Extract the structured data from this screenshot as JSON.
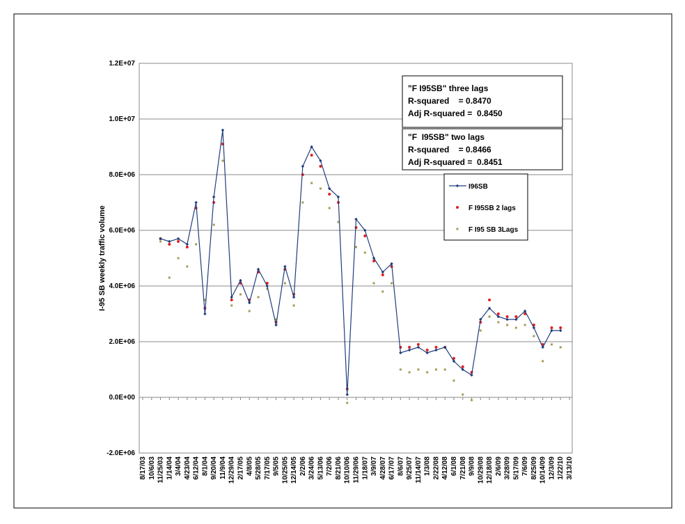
{
  "chart_data": {
    "type": "line",
    "y_axis_label": "I-95 SB weekly traffic volume",
    "categories": [
      "8/17/03",
      "10/6/03",
      "11/25/03",
      "1/14/04",
      "3/4/04",
      "4/23/04",
      "6/12/04",
      "8/1/04",
      "9/20/04",
      "11/9/04",
      "12/29/04",
      "2/17/05",
      "4/8/05",
      "5/28/05",
      "7/17/05",
      "9/5/05",
      "10/25/05",
      "12/14/05",
      "2/2/06",
      "3/24/06",
      "5/13/06",
      "7/2/06",
      "8/21/06",
      "10/10/06",
      "11/29/06",
      "1/18/07",
      "3/9/07",
      "4/28/07",
      "6/17/07",
      "8/6/07",
      "9/25/07",
      "11/14/07",
      "1/3/08",
      "2/22/08",
      "4/12/08",
      "6/1/08",
      "7/21/08",
      "9/9/08",
      "10/29/08",
      "12/18/08",
      "2/6/09",
      "3/28/09",
      "5/17/09",
      "7/6/09",
      "8/25/09",
      "10/14/09",
      "12/3/09",
      "1/22/10",
      "3/13/10"
    ],
    "series": [
      {
        "name": "I96SB",
        "color": "#1f3d7a",
        "style": "line-diamond",
        "values": [
          null,
          null,
          5700000,
          5600000,
          5700000,
          5500000,
          7000000,
          3000000,
          7200000,
          9600000,
          3600000,
          4200000,
          3400000,
          4600000,
          4000000,
          2600000,
          4700000,
          3600000,
          8300000,
          9000000,
          8500000,
          7500000,
          7200000,
          100000,
          6400000,
          6000000,
          5000000,
          4500000,
          4800000,
          1600000,
          1700000,
          1800000,
          1600000,
          1700000,
          1800000,
          1300000,
          1000000,
          800000,
          2800000,
          3200000,
          2900000,
          2800000,
          2800000,
          3100000,
          2500000,
          1800000,
          2400000,
          2400000,
          null
        ]
      },
      {
        "name": "F I95SB 2 lags",
        "color": "#e02020",
        "style": "dot",
        "values": [
          null,
          null,
          5700000,
          5500000,
          5600000,
          5400000,
          6800000,
          3200000,
          7000000,
          9100000,
          3500000,
          4100000,
          3500000,
          4500000,
          4100000,
          2700000,
          4600000,
          3700000,
          8000000,
          8700000,
          8300000,
          7300000,
          7000000,
          300000,
          6100000,
          5800000,
          4900000,
          4400000,
          4700000,
          1800000,
          1800000,
          1900000,
          1700000,
          1800000,
          1800000,
          1400000,
          1100000,
          900000,
          2700000,
          3500000,
          3000000,
          2900000,
          2900000,
          3000000,
          2600000,
          1900000,
          2500000,
          2500000,
          null
        ]
      },
      {
        "name": "F I95 SB 3Lags",
        "color": "#a89a50",
        "style": "square",
        "values": [
          null,
          null,
          5600000,
          4300000,
          5000000,
          4700000,
          5500000,
          3500000,
          6200000,
          8500000,
          3300000,
          3700000,
          3100000,
          3600000,
          3900000,
          2800000,
          4100000,
          3300000,
          7000000,
          7700000,
          7500000,
          6800000,
          6300000,
          -200000,
          5400000,
          5200000,
          4100000,
          3800000,
          4100000,
          1000000,
          900000,
          1000000,
          900000,
          1000000,
          1000000,
          600000,
          100000,
          -100000,
          2400000,
          2900000,
          2700000,
          2600000,
          2500000,
          2600000,
          2200000,
          1300000,
          1900000,
          1800000,
          null
        ]
      }
    ],
    "ylim": [
      -2000000,
      12000000
    ],
    "yticks": [
      {
        "value": -2000000,
        "label": "-2.0E+06"
      },
      {
        "value": 0,
        "label": "0.0E+00"
      },
      {
        "value": 2000000,
        "label": "2.0E+06"
      },
      {
        "value": 4000000,
        "label": "4.0E+06"
      },
      {
        "value": 6000000,
        "label": "6.0E+06"
      },
      {
        "value": 8000000,
        "label": "8.0E+06"
      },
      {
        "value": 10000000,
        "label": "1.0E+07"
      },
      {
        "value": 12000000,
        "label": "1.2E+07"
      }
    ],
    "grid": true,
    "annotations": [
      [
        "\"F I95SB\" three lags",
        "R-squared    = 0.8470",
        "Adj R-squared =  0.8450"
      ],
      [
        "\"F  I95SB\" two lags",
        "R-squared    = 0.8466",
        "Adj R-squared =  0.8451"
      ]
    ]
  }
}
